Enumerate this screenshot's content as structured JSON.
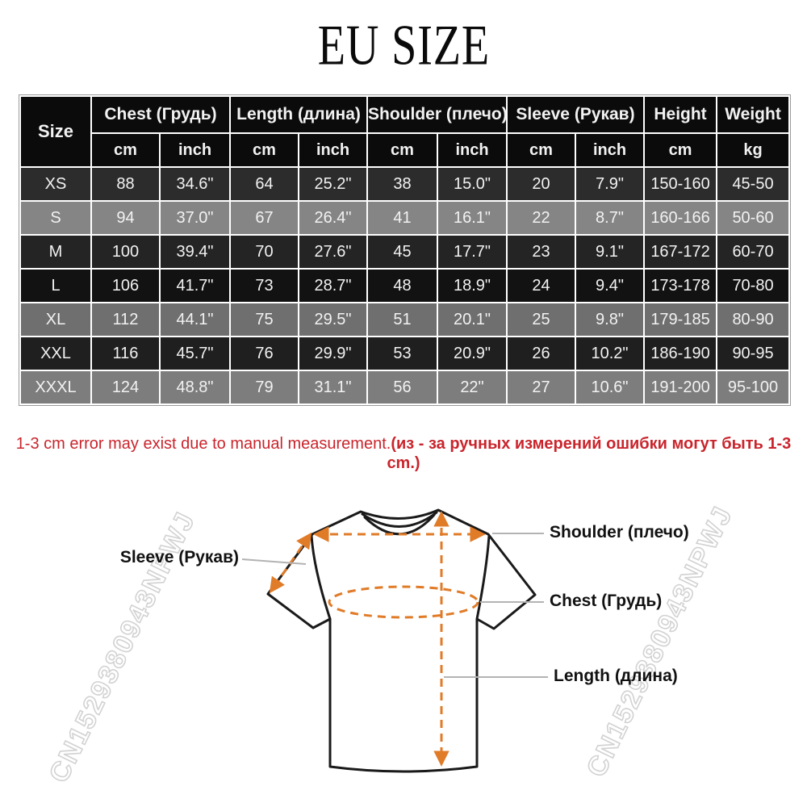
{
  "title": "EU SIZE",
  "table": {
    "size_header": "Size",
    "groups": [
      {
        "label": "Chest  (Грудь)",
        "units": [
          "cm",
          "inch"
        ]
      },
      {
        "label": "Length (длина)",
        "units": [
          "cm",
          "inch"
        ]
      },
      {
        "label": "Shoulder (плечо)",
        "units": [
          "cm",
          "inch"
        ]
      },
      {
        "label": "Sleeve (Рукав)",
        "units": [
          "cm",
          "inch"
        ]
      },
      {
        "label": "Height",
        "units": [
          "cm"
        ]
      },
      {
        "label": "Weight",
        "units": [
          "kg"
        ]
      }
    ],
    "header_bg": "#0b0b0b",
    "rows": [
      {
        "size": "XS",
        "bg": "#2c2c2c",
        "cells": [
          "88",
          "34.6\"",
          "64",
          "25.2\"",
          "38",
          "15.0\"",
          "20",
          "7.9\"",
          "150-160",
          "45-50"
        ]
      },
      {
        "size": "S",
        "bg": "#858585",
        "cells": [
          "94",
          "37.0\"",
          "67",
          "26.4\"",
          "41",
          "16.1\"",
          "22",
          "8.7\"",
          "160-166",
          "50-60"
        ]
      },
      {
        "size": "M",
        "bg": "#242424",
        "cells": [
          "100",
          "39.4\"",
          "70",
          "27.6\"",
          "45",
          "17.7\"",
          "23",
          "9.1\"",
          "167-172",
          "60-70"
        ]
      },
      {
        "size": "L",
        "bg": "#121212",
        "cells": [
          "106",
          "41.7\"",
          "73",
          "28.7\"",
          "48",
          "18.9\"",
          "24",
          "9.4\"",
          "173-178",
          "70-80"
        ]
      },
      {
        "size": "XL",
        "bg": "#6f6f6f",
        "cells": [
          "112",
          "44.1\"",
          "75",
          "29.5\"",
          "51",
          "20.1\"",
          "25",
          "9.8\"",
          "179-185",
          "80-90"
        ]
      },
      {
        "size": "XXL",
        "bg": "#1f1f1f",
        "cells": [
          "116",
          "45.7\"",
          "76",
          "29.9\"",
          "53",
          "20.9\"",
          "26",
          "10.2\"",
          "186-190",
          "90-95"
        ]
      },
      {
        "size": "XXXL",
        "bg": "#7d7d7d",
        "cells": [
          "124",
          "48.8\"",
          "79",
          "31.1\"",
          "56",
          "22\"",
          "27",
          "10.6\"",
          "191-200",
          "95-100"
        ]
      }
    ]
  },
  "note": {
    "en": "1-3 cm error may exist due to manual measurement.",
    "ru": "(из - за ручных измерений ошибки могут быть 1-3 cm.)",
    "color": "#c9252c"
  },
  "diagram": {
    "labels": {
      "sleeve": "Sleeve (Рукав)",
      "shoulder": "Shoulder (плечо)",
      "chest": "Chest  (Грудь)",
      "length": "Length (длина)"
    },
    "watermark": "CN1529380943NPWJ",
    "arrow_color": "#e07b28",
    "outline_color": "#1a1a1a"
  }
}
